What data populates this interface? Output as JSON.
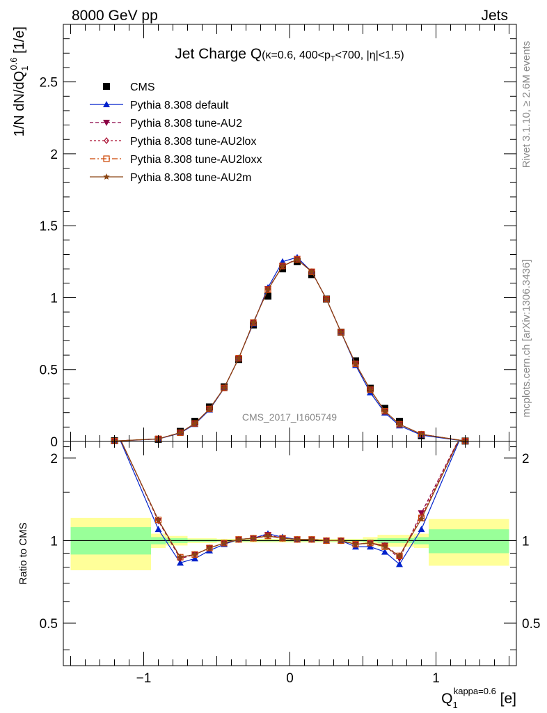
{
  "header": {
    "left": "8000 GeV pp",
    "right": "Jets"
  },
  "side_labels": {
    "rivet": "Rivet 3.1.10, ≥ 2.6M events",
    "mcplots": "mcplots.cern.ch [arXiv:1306.3436]"
  },
  "watermark": "CMS_2017_I1605749",
  "colors": {
    "cms": "#000000",
    "default": "#0022cc",
    "au2": "#8b0044",
    "au2lox": "#aa1133",
    "au2loxx": "#cc4400",
    "au2m": "#8b4513",
    "band_inner": "#99ff99",
    "band_outer": "#ffff99"
  },
  "chart_data": [
    {
      "type": "line",
      "title": "Jet Charge Q(κ=0.6, 400<p_T<700, |η|<1.5)",
      "title_parts": {
        "main": "Jet Charge Q",
        "sub1": "(κ=0.6, 400<p",
        "sub_T": "T",
        "sub2": "<700, |η|<1.5)"
      },
      "ylabel": "1/N dN/dQ_1^0.6 [1/e]",
      "ylabel_parts": {
        "main": "1/N dN/dQ",
        "sub": "1",
        "sup": "0.6",
        "unit": " [1/e]"
      },
      "xlim": [
        -1.55,
        1.55
      ],
      "ylim": [
        0,
        2.9
      ],
      "yticks": [
        "0",
        "0.5",
        "1",
        "1.5",
        "2",
        "2.5"
      ],
      "legend_position": "top-left",
      "x": [
        -1.2,
        -0.9,
        -0.75,
        -0.65,
        -0.55,
        -0.45,
        -0.35,
        -0.25,
        -0.15,
        -0.05,
        0.05,
        0.15,
        0.25,
        0.35,
        0.45,
        0.55,
        0.65,
        0.75,
        0.9,
        1.2
      ],
      "series": [
        {
          "name": "CMS",
          "key": "cms",
          "marker": "square",
          "dash": "none",
          "values": [
            0.005,
            0.015,
            0.07,
            0.14,
            0.24,
            0.38,
            0.57,
            0.81,
            1.01,
            1.2,
            1.25,
            1.16,
            0.99,
            0.76,
            0.56,
            0.37,
            0.23,
            0.14,
            0.04,
            0.003
          ]
        },
        {
          "name": "Pythia 8.308 default",
          "key": "default",
          "marker": "triangle-up",
          "dash": "none",
          "values": [
            0.002,
            0.017,
            0.058,
            0.12,
            0.22,
            0.37,
            0.58,
            0.82,
            1.07,
            1.25,
            1.28,
            1.18,
            0.99,
            0.76,
            0.53,
            0.34,
            0.2,
            0.11,
            0.044,
            0.002
          ]
        },
        {
          "name": "Pythia 8.308 tune-AU2",
          "key": "au2",
          "marker": "triangle-down",
          "dash": "5,3",
          "values": [
            0.003,
            0.018,
            0.061,
            0.125,
            0.226,
            0.372,
            0.578,
            0.827,
            1.06,
            1.22,
            1.27,
            1.18,
            0.99,
            0.76,
            0.54,
            0.36,
            0.21,
            0.12,
            0.05,
            0.003
          ]
        },
        {
          "name": "Pythia 8.308 tune-AU2lox",
          "key": "au2lox",
          "marker": "diamond-open",
          "dash": "3,3",
          "values": [
            0.003,
            0.018,
            0.061,
            0.125,
            0.226,
            0.372,
            0.578,
            0.827,
            1.055,
            1.22,
            1.265,
            1.18,
            0.99,
            0.76,
            0.54,
            0.36,
            0.21,
            0.12,
            0.05,
            0.003
          ]
        },
        {
          "name": "Pythia 8.308 tune-AU2loxx",
          "key": "au2loxx",
          "marker": "square-open",
          "dash": "8,3,2,3",
          "values": [
            0.003,
            0.018,
            0.061,
            0.125,
            0.226,
            0.372,
            0.578,
            0.827,
            1.055,
            1.22,
            1.265,
            1.18,
            0.99,
            0.76,
            0.54,
            0.36,
            0.21,
            0.12,
            0.05,
            0.003
          ]
        },
        {
          "name": "Pythia 8.308 tune-AU2m",
          "key": "au2m",
          "marker": "star",
          "dash": "none",
          "values": [
            0.003,
            0.018,
            0.061,
            0.125,
            0.226,
            0.372,
            0.578,
            0.827,
            1.055,
            1.22,
            1.265,
            1.18,
            0.99,
            0.76,
            0.54,
            0.36,
            0.21,
            0.12,
            0.05,
            0.003
          ]
        }
      ]
    },
    {
      "type": "line",
      "ylabel": "Ratio to CMS",
      "xlabel": "Q_1^kappa=0.6 [e]",
      "xlabel_parts": {
        "main": "Q",
        "sub": "1",
        "sup": "kappa=0.6",
        "unit": " [e]"
      },
      "xlim": [
        -1.55,
        1.55
      ],
      "ylim": [
        0.35,
        2.3
      ],
      "xticks": [
        "−1",
        "0",
        "1"
      ],
      "yticks": [
        "0.5",
        "1",
        "2"
      ],
      "bands": [
        {
          "x0": -1.5,
          "x1": -0.95,
          "inner": [
            0.89,
            1.12
          ],
          "outer": [
            0.78,
            1.21
          ]
        },
        {
          "x0": -0.95,
          "x1": -0.85,
          "inner": [
            0.97,
            1.03
          ],
          "outer": [
            0.94,
            1.06
          ]
        },
        {
          "x0": -0.85,
          "x1": -0.7,
          "inner": [
            0.98,
            1.02
          ],
          "outer": [
            0.96,
            1.04
          ]
        },
        {
          "x0": -0.7,
          "x1": -0.5,
          "inner": [
            0.99,
            1.01
          ],
          "outer": [
            0.98,
            1.02
          ]
        },
        {
          "x0": -0.5,
          "x1": 0.5,
          "inner": [
            0.993,
            1.007
          ],
          "outer": [
            0.985,
            1.015
          ]
        },
        {
          "x0": 0.5,
          "x1": 0.6,
          "inner": [
            0.99,
            1.01
          ],
          "outer": [
            0.97,
            1.03
          ]
        },
        {
          "x0": 0.6,
          "x1": 0.85,
          "inner": [
            0.98,
            1.02
          ],
          "outer": [
            0.95,
            1.05
          ]
        },
        {
          "x0": 0.85,
          "x1": 0.95,
          "inner": [
            0.97,
            1.03
          ],
          "outer": [
            0.94,
            1.06
          ]
        },
        {
          "x0": 0.95,
          "x1": 1.5,
          "inner": [
            0.9,
            1.1
          ],
          "outer": [
            0.81,
            1.2
          ]
        }
      ],
      "series": [
        {
          "name": "Pythia 8.308 default",
          "key": "default",
          "marker": "triangle-up",
          "dash": "none",
          "values": [
            2.6,
            1.1,
            0.83,
            0.86,
            0.92,
            0.97,
            1.01,
            1.02,
            1.06,
            1.03,
            1.01,
            1.01,
            1.0,
            1.0,
            0.95,
            0.95,
            0.91,
            0.82,
            1.1,
            2.6
          ]
        },
        {
          "name": "Pythia 8.308 tune-AU2",
          "key": "au2",
          "marker": "triangle-down",
          "dash": "5,3",
          "values": [
            2.6,
            1.18,
            0.86,
            0.89,
            0.94,
            0.98,
            1.01,
            1.02,
            1.05,
            1.02,
            1.01,
            1.01,
            1.0,
            1.0,
            0.97,
            0.98,
            0.96,
            0.86,
            1.26,
            2.6
          ]
        },
        {
          "name": "Pythia 8.308 tune-AU2lox",
          "key": "au2lox",
          "marker": "diamond-open",
          "dash": "3,3",
          "values": [
            2.6,
            1.19,
            0.87,
            0.89,
            0.94,
            0.98,
            1.01,
            1.02,
            1.04,
            1.02,
            1.01,
            1.01,
            1.0,
            1.0,
            0.97,
            0.98,
            0.96,
            0.88,
            1.23,
            2.6
          ]
        },
        {
          "name": "Pythia 8.308 tune-AU2loxx",
          "key": "au2loxx",
          "marker": "square-open",
          "dash": "8,3,2,3",
          "values": [
            2.6,
            1.19,
            0.87,
            0.89,
            0.94,
            0.98,
            1.01,
            1.02,
            1.04,
            1.02,
            1.01,
            1.01,
            1.0,
            1.0,
            0.97,
            0.98,
            0.95,
            0.88,
            1.21,
            2.6
          ]
        },
        {
          "name": "Pythia 8.308 tune-AU2m",
          "key": "au2m",
          "marker": "star",
          "dash": "none",
          "values": [
            2.6,
            1.19,
            0.87,
            0.89,
            0.94,
            0.98,
            1.01,
            1.02,
            1.04,
            1.02,
            1.01,
            1.01,
            1.0,
            1.0,
            0.97,
            0.98,
            0.95,
            0.88,
            1.2,
            2.6
          ]
        }
      ]
    }
  ]
}
